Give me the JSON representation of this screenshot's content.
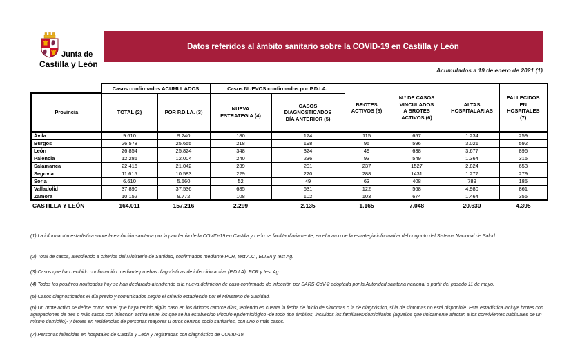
{
  "logo": {
    "name_line1": "Junta de",
    "name_line2": "Castilla y León"
  },
  "banner": {
    "title": "Datos referidos al ámbito sanitario sobre la COVID-19 en Castilla y León"
  },
  "date_note": "Acumulados a 19 de enero de 2021 (1)",
  "colors": {
    "banner_bg": "#A61E3B",
    "table_border": "#000000"
  },
  "table": {
    "group_headers": {
      "accumulated": "Casos confirmados ACUMULADOS",
      "new_pdia": "Casos NUEVOS confirmados por P.D.I.A."
    },
    "col_headers": {
      "provincia": "Provincia",
      "total": "TOTAL (2)",
      "por_pdia": "POR P.D.I.A. (3)",
      "nueva_estrategia": "NUEVA\nESTRATEGIA (4)",
      "casos_diagnosticados": "CASOS\nDIAGNOSTICADOS\nDÍA ANTERIOR (5)",
      "brotes_activos": "BROTES\nACTIVOS (6)",
      "casos_vinculados": "N.º DE CASOS\nVINCULADOS\nA BROTES\nACTIVOS (6)",
      "altas": "ALTAS\nHOSPITALARIAS",
      "fallecidos": "FALLECIDOS\nEN\nHOSPITALES\n(7)"
    },
    "rows": [
      {
        "provincia": "Ávila",
        "values": [
          "9.610",
          "9.240",
          "180",
          "174",
          "115",
          "657",
          "1.234",
          "259"
        ]
      },
      {
        "provincia": "Burgos",
        "values": [
          "26.578",
          "25.655",
          "218",
          "198",
          "95",
          "596",
          "3.021",
          "592"
        ]
      },
      {
        "provincia": "León",
        "values": [
          "26.854",
          "25.824",
          "348",
          "324",
          "49",
          "638",
          "3.677",
          "896"
        ]
      },
      {
        "provincia": "Palencia",
        "values": [
          "12.286",
          "12.004",
          "240",
          "236",
          "93",
          "549",
          "1.364",
          "315"
        ]
      },
      {
        "provincia": "Salamanca",
        "values": [
          "22.416",
          "21.042",
          "239",
          "201",
          "237",
          "1527",
          "2.824",
          "653"
        ]
      },
      {
        "provincia": "Segovia",
        "values": [
          "11.615",
          "10.583",
          "229",
          "220",
          "288",
          "1431",
          "1.277",
          "279"
        ]
      },
      {
        "provincia": "Soria",
        "values": [
          "6.610",
          "5.560",
          "52",
          "49",
          "63",
          "408",
          "789",
          "185"
        ]
      },
      {
        "provincia": "Valladolid",
        "values": [
          "37.890",
          "37.536",
          "685",
          "631",
          "122",
          "568",
          "4.980",
          "861"
        ]
      },
      {
        "provincia": "Zamora",
        "values": [
          "10.152",
          "9.772",
          "108",
          "102",
          "103",
          "674",
          "1.464",
          "355"
        ]
      }
    ],
    "total_row": {
      "provincia": "CASTILLA Y LEÓN",
      "values": [
        "164.011",
        "157.216",
        "2.299",
        "2.135",
        "1.165",
        "7.048",
        "20.630",
        "4.395"
      ]
    }
  },
  "footnotes": [
    "(1) La información estadística sobre la evolución sanitaria por la pandemia de la COVID-19 en Castilla y León se facilita diariamente, en el marco de la estrategia informativa del conjunto del Sistema Nacional de Salud.",
    "(2) Total de casos, atendiendo a criterios del Ministerio de Sanidad, confirmados mediante PCR, test A.C., ELISA y test Ag.",
    "(3) Casos que han recibido confirmación mediante pruebas diagnósticas de infección activa (P.D.I.A): PCR y test Ag.",
    "(4) Todos los positivos notificados hoy se han declarado atendiendo a la nueva definición de caso confirmado de infección por SARS-CoV-2 adoptada por la Autoridad sanitaria nacional a partir del pasado 11 de mayo.",
    "(5) Casos diagnosticados el día previo y comunicados según el criterio establecido por el Ministerio de Sanidad.",
    "(6) Un brote activo se define como aquel que haya tenido algún caso en los últimos catorce días, teniendo en cuenta la fecha de inicio de síntomas o la de diagnóstico, si la de síntomas no está disponible. Esta estadística incluye brotes con agrupaciones de tres o más casos con infección activa entre los que se ha establecido vínculo epidemiológico -de todo tipo ámbitos, incluidos los familiares/domiciliarios (aquellos que únicamente afectan a los convivientes habituales de un mismo domicilio)- y brotes en residencias de personas mayores u otros centros socio sanitarios, con uno o más casos.",
    "(7) Personas fallecidas en hospitales de Castilla y León y registradas con diagnóstico de COVID-19."
  ]
}
